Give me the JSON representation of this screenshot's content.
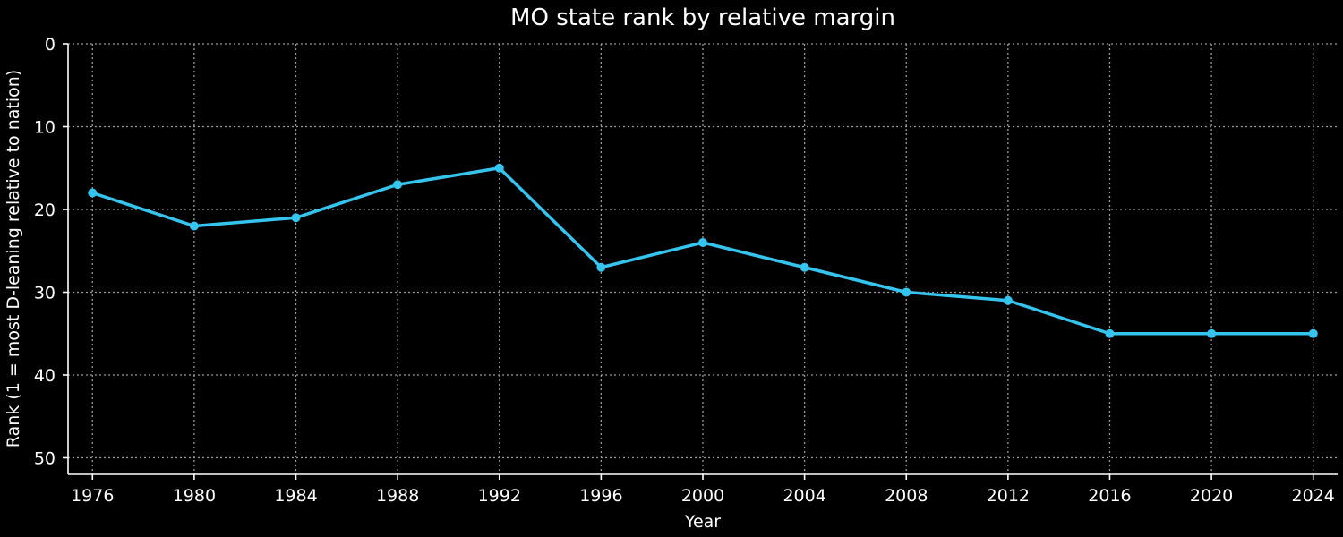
{
  "chart_data": {
    "type": "line",
    "title": "MO state rank by relative margin",
    "xlabel": "Year",
    "ylabel": "Rank (1 = most D-leaning relative to nation)",
    "x": [
      1976,
      1980,
      1984,
      1988,
      1992,
      1996,
      2000,
      2004,
      2008,
      2012,
      2016,
      2020,
      2024
    ],
    "series": [
      {
        "values": [
          18,
          22,
          21,
          17,
          15,
          27,
          24,
          27,
          30,
          31,
          35,
          35,
          35
        ],
        "color": "#35c4ee"
      }
    ],
    "xticks": [
      "1976",
      "1980",
      "1984",
      "1988",
      "1992",
      "1996",
      "2000",
      "2004",
      "2008",
      "2012",
      "2016",
      "2020",
      "2024"
    ],
    "yticks": [
      "0",
      "10",
      "20",
      "30",
      "40",
      "50"
    ],
    "ylim": [
      0,
      52
    ],
    "y_inverted": true,
    "grid": true,
    "background": "#000000",
    "text_color": "#ffffff",
    "grid_color": "#9a9a9a"
  }
}
